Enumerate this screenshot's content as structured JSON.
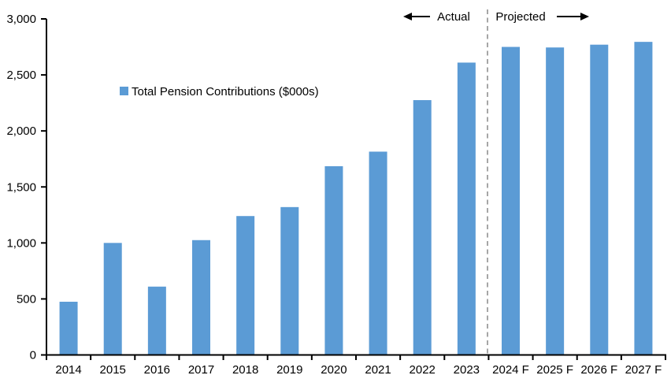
{
  "chart": {
    "legend_label": "Total Pension Contributions ($000s)",
    "actual_label": "Actual",
    "projected_label": "Projected"
  },
  "chart_data": {
    "type": "bar",
    "title": "",
    "xlabel": "",
    "ylabel": "",
    "categories": [
      "2014",
      "2015",
      "2016",
      "2017",
      "2018",
      "2019",
      "2020",
      "2021",
      "2022",
      "2023",
      "2024 F",
      "2025 F",
      "2026 F",
      "2027 F"
    ],
    "series": [
      {
        "name": "Total Pension Contributions ($000s)",
        "values": [
          475,
          1000,
          610,
          1025,
          1240,
          1320,
          1685,
          1815,
          2275,
          2610,
          2750,
          2745,
          2770,
          2795
        ]
      }
    ],
    "ylim": [
      0,
      3000
    ],
    "yticks": [
      0,
      500,
      1000,
      1500,
      2000,
      2500,
      3000
    ],
    "ytick_labels": [
      "0",
      "500",
      "1,000",
      "1,500",
      "2,000",
      "2,500",
      "3,000"
    ],
    "grid": false,
    "legend_position": "inside-upper-left",
    "annotations": [
      {
        "text": "Actual",
        "side": "left",
        "applies_to": "2014-2023"
      },
      {
        "text": "Projected",
        "side": "right",
        "applies_to": "2024 F-2027 F"
      }
    ],
    "divider_between": [
      "2023",
      "2024 F"
    ],
    "colors": {
      "bar": "#5B9BD5",
      "divider": "#A6A6A6",
      "axis": "#000000",
      "text": "#000000"
    }
  }
}
